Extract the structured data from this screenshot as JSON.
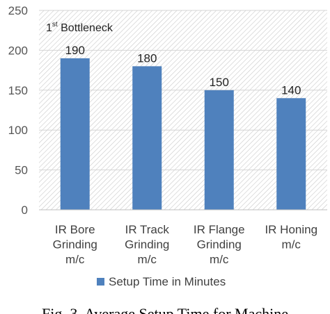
{
  "chart_data": {
    "type": "bar",
    "categories": [
      [
        "IR Bore",
        "Grinding",
        "m/c"
      ],
      [
        "IR Track",
        "Grinding",
        "m/c"
      ],
      [
        "IR Flange",
        "Grinding",
        "m/c"
      ],
      [
        "IR Honing",
        "m/c"
      ]
    ],
    "series": [
      {
        "name": "Setup Time in Minutes",
        "values": [
          190,
          180,
          150,
          140
        ],
        "color": "#4f81bd"
      }
    ],
    "ylim": [
      0,
      250
    ],
    "yticks": [
      0,
      50,
      100,
      150,
      200,
      250
    ],
    "grid": true,
    "legend_position": "bottom",
    "annotation": {
      "base": "1",
      "sup": "st",
      "text": " Bottleneck"
    }
  },
  "caption": "Fig. 3. Average Setup Time for Machine"
}
